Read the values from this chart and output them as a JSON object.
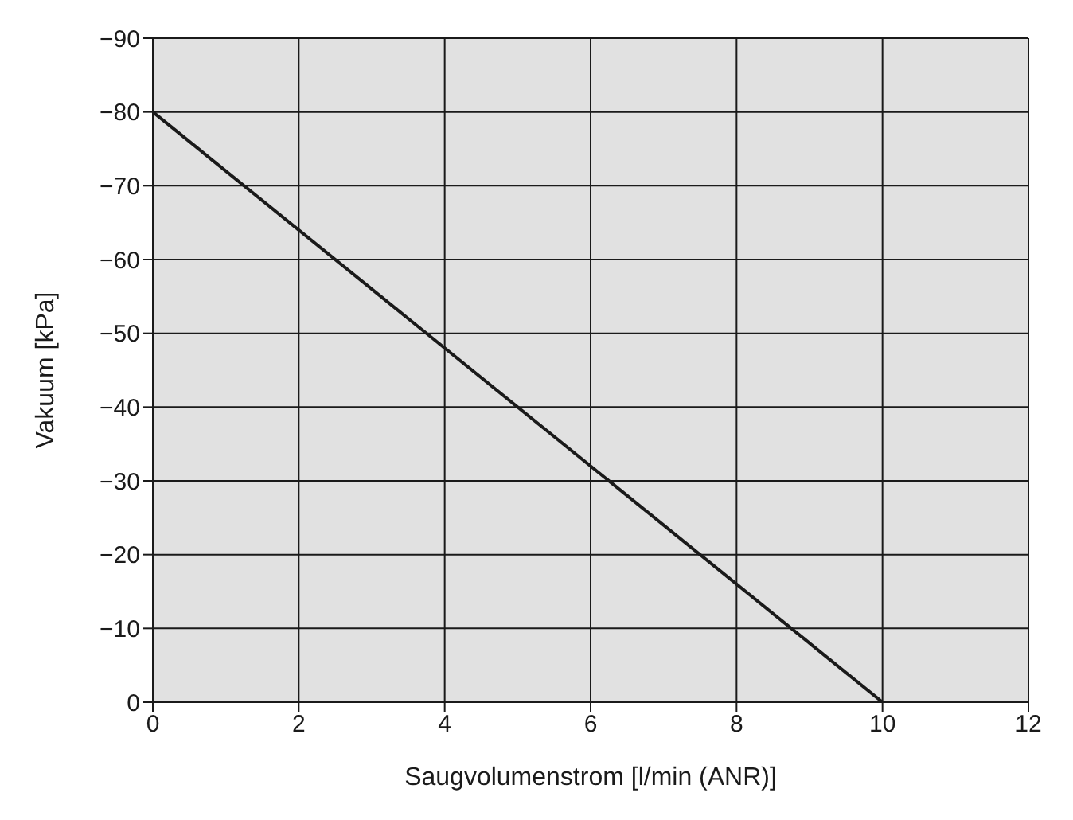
{
  "chart_data": {
    "type": "line",
    "xlabel": "Saugvolumenstrom [l/min (ANR)]",
    "ylabel": "Vakuum [kPa]",
    "x": [
      0,
      10
    ],
    "series": [
      {
        "color": "#1a1a1a",
        "values": [
          -80,
          0
        ]
      }
    ],
    "xlim": [
      0,
      12
    ],
    "xticks": [
      0,
      2,
      4,
      6,
      8,
      10,
      12
    ],
    "ylim": [
      0,
      -90
    ],
    "yticks": [
      {
        "value": 0,
        "label": "0"
      },
      {
        "value": -10,
        "label": "−10"
      },
      {
        "value": -20,
        "label": "−20"
      },
      {
        "value": -30,
        "label": "−30"
      },
      {
        "value": -40,
        "label": "−40"
      },
      {
        "value": -50,
        "label": "−50"
      },
      {
        "value": -60,
        "label": "−60"
      },
      {
        "value": -70,
        "label": "−70"
      },
      {
        "value": -80,
        "label": "−80"
      },
      {
        "value": -90,
        "label": "−90"
      }
    ],
    "grid": true,
    "line_style": "solid"
  }
}
